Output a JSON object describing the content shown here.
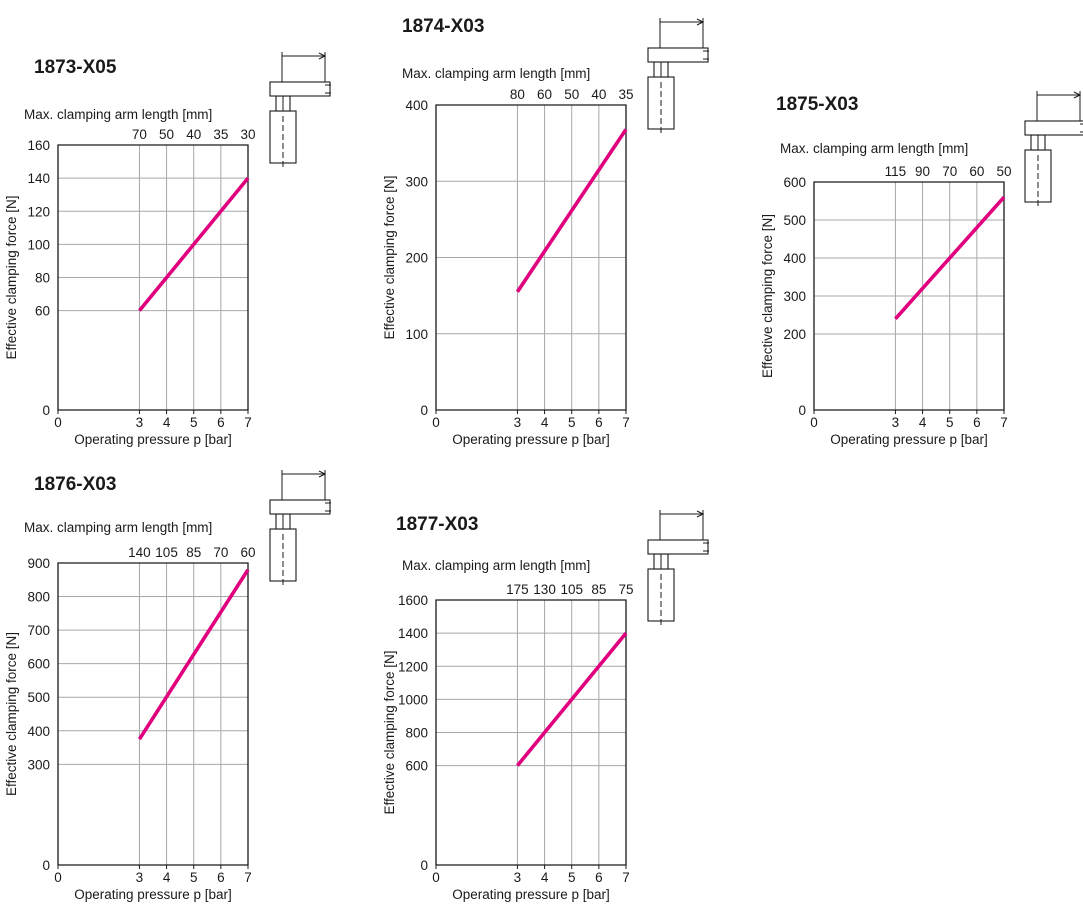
{
  "chart_data": [
    {
      "type": "line",
      "title": "1873-X05",
      "xlabel": "Operating pressure p  [bar]",
      "ylabel": "Effective clamping force [N]",
      "x2label": "Max. clamping arm length [mm]",
      "xlim": [
        0,
        7
      ],
      "ylim": [
        0,
        160
      ],
      "xticks": [
        "0",
        "3",
        "4",
        "5",
        "6",
        "7"
      ],
      "yticks": [
        "0",
        "60",
        "80",
        "100",
        "120",
        "140",
        "160"
      ],
      "top_ticks": [
        "70",
        "50",
        "40",
        "35",
        "30"
      ],
      "grid": true,
      "series": [
        {
          "x": [
            3,
            7
          ],
          "y": [
            60,
            140
          ]
        }
      ]
    },
    {
      "type": "line",
      "title": "1874-X03",
      "xlabel": "Operating pressure p  [bar]",
      "ylabel": "Effective clamping force [N]",
      "x2label": "Max. clamping arm length [mm]",
      "xlim": [
        0,
        7
      ],
      "ylim": [
        0,
        400
      ],
      "xticks": [
        "0",
        "3",
        "4",
        "5",
        "6",
        "7"
      ],
      "yticks": [
        "0",
        "100",
        "200",
        "300",
        "400"
      ],
      "top_ticks": [
        "80",
        "60",
        "50",
        "40",
        "35"
      ],
      "grid": true,
      "series": [
        {
          "x": [
            3,
            7
          ],
          "y": [
            155,
            368
          ]
        }
      ]
    },
    {
      "type": "line",
      "title": "1875-X03",
      "xlabel": "Operating pressure p  [bar]",
      "ylabel": "Effective clamping force [N]",
      "x2label": "Max. clamping arm length [mm]",
      "xlim": [
        0,
        7
      ],
      "ylim": [
        0,
        600
      ],
      "xticks": [
        "0",
        "3",
        "4",
        "5",
        "6",
        "7"
      ],
      "yticks": [
        "0",
        "200",
        "300",
        "400",
        "500",
        "600"
      ],
      "top_ticks": [
        "115",
        "90",
        "70",
        "60",
        "50"
      ],
      "grid": true,
      "series": [
        {
          "x": [
            3,
            7
          ],
          "y": [
            240,
            560
          ]
        }
      ]
    },
    {
      "type": "line",
      "title": "1876-X03",
      "xlabel": "Operating pressure p  [bar]",
      "ylabel": "Effective clamping force [N]",
      "x2label": "Max. clamping arm length [mm]",
      "xlim": [
        0,
        7
      ],
      "ylim": [
        0,
        900
      ],
      "xticks": [
        "0",
        "3",
        "4",
        "5",
        "6",
        "7"
      ],
      "yticks": [
        "0",
        "300",
        "400",
        "500",
        "600",
        "700",
        "800",
        "900"
      ],
      "top_ticks": [
        "140",
        "105",
        "85",
        "70",
        "60"
      ],
      "grid": true,
      "series": [
        {
          "x": [
            3,
            7
          ],
          "y": [
            375,
            880
          ]
        }
      ]
    },
    {
      "type": "line",
      "title": "1877-X03",
      "xlabel": "Operating pressure p [bar]",
      "ylabel": "Effective clamping force [N]",
      "x2label": "Max. clamping arm length [mm]",
      "xlim": [
        0,
        7
      ],
      "ylim": [
        0,
        1600
      ],
      "xticks": [
        "0",
        "3",
        "4",
        "5",
        "6",
        "7"
      ],
      "yticks": [
        "0",
        "600",
        "800",
        "1000",
        "1200",
        "1400",
        "1600"
      ],
      "top_ticks": [
        "175",
        "130",
        "105",
        "85",
        "75"
      ],
      "grid": true,
      "series": [
        {
          "x": [
            3,
            7
          ],
          "y": [
            600,
            1400
          ]
        }
      ]
    }
  ],
  "colors": {
    "line": "#e0007e",
    "grid": "#a8a8a8",
    "frame": "#1a1a1a"
  },
  "icons": [
    "clamp-symbol-icon"
  ]
}
